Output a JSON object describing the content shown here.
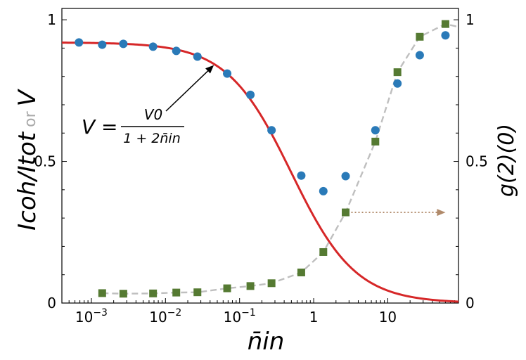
{
  "chart_data": {
    "type": "scatter",
    "xlabel": "n̄in",
    "ylabel_left": "Icoh/Itot or V",
    "ylabel_left_parts": [
      "Icoh/Itot",
      " or ",
      "V"
    ],
    "ylabel_right": "g(2)(0)",
    "x_scale": "log",
    "xlim": [
      0.0004,
      90
    ],
    "ylim": [
      0,
      1.04
    ],
    "x_tick_labels": [
      "10−3",
      "10−2",
      "10−1",
      "1",
      "10"
    ],
    "y_tick_labels_left": [
      "0",
      "0.5",
      "1"
    ],
    "y_tick_labels_right": [
      "0",
      "0.5",
      "1"
    ],
    "grid": false,
    "colors": {
      "visibility_points": "#2a7ab8",
      "g2_points": "#557a32",
      "model_curve": "#d62728",
      "g2_dashed": "#bfbfbf",
      "arrow": "#b08a6a",
      "ylabel_or": "#aaaaaa"
    },
    "annotation": {
      "equation": "V = V0 / (1 + 2n̄in)",
      "lhs": "V =",
      "numerator": "V0",
      "denominator": "1 + 2n̄in",
      "points_to": {
        "x": 0.045,
        "y": 0.84
      }
    },
    "series": [
      {
        "marker": "circle",
        "color": "#2a7ab8",
        "points": [
          {
            "x": 0.00068,
            "y": 0.92
          },
          {
            "x": 0.0014,
            "y": 0.912
          },
          {
            "x": 0.0027,
            "y": 0.915
          },
          {
            "x": 0.0068,
            "y": 0.905
          },
          {
            "x": 0.014,
            "y": 0.89
          },
          {
            "x": 0.027,
            "y": 0.87
          },
          {
            "x": 0.068,
            "y": 0.81
          },
          {
            "x": 0.14,
            "y": 0.735
          },
          {
            "x": 0.27,
            "y": 0.61
          },
          {
            "x": 0.68,
            "y": 0.45
          },
          {
            "x": 1.35,
            "y": 0.395
          },
          {
            "x": 2.7,
            "y": 0.448
          },
          {
            "x": 6.8,
            "y": 0.61
          },
          {
            "x": 13.5,
            "y": 0.775
          },
          {
            "x": 27,
            "y": 0.875
          },
          {
            "x": 60,
            "y": 0.945
          }
        ]
      },
      {
        "marker": "square",
        "axis": "right",
        "color": "#557a32",
        "points": [
          {
            "x": 0.0014,
            "y": 0.035
          },
          {
            "x": 0.0027,
            "y": 0.033
          },
          {
            "x": 0.0068,
            "y": 0.034
          },
          {
            "x": 0.014,
            "y": 0.037
          },
          {
            "x": 0.027,
            "y": 0.038
          },
          {
            "x": 0.068,
            "y": 0.052
          },
          {
            "x": 0.14,
            "y": 0.06
          },
          {
            "x": 0.27,
            "y": 0.07
          },
          {
            "x": 0.68,
            "y": 0.108
          },
          {
            "x": 1.35,
            "y": 0.18
          },
          {
            "x": 2.7,
            "y": 0.32
          },
          {
            "x": 6.8,
            "y": 0.57
          },
          {
            "x": 13.5,
            "y": 0.815
          },
          {
            "x": 27,
            "y": 0.94
          },
          {
            "x": 60,
            "y": 0.985
          }
        ]
      },
      {
        "type": "line",
        "style": "solid",
        "color": "#d62728",
        "model": "V0 / (1 + 2 x)",
        "V0": 0.92
      },
      {
        "type": "line",
        "style": "dashed",
        "axis": "right",
        "color": "#bfbfbf",
        "points": [
          {
            "x": 0.0014,
            "y": 0.035
          },
          {
            "x": 0.0027,
            "y": 0.033
          },
          {
            "x": 0.0068,
            "y": 0.034
          },
          {
            "x": 0.014,
            "y": 0.037
          },
          {
            "x": 0.027,
            "y": 0.038
          },
          {
            "x": 0.068,
            "y": 0.052
          },
          {
            "x": 0.14,
            "y": 0.06
          },
          {
            "x": 0.27,
            "y": 0.07
          },
          {
            "x": 0.68,
            "y": 0.108
          },
          {
            "x": 1.35,
            "y": 0.18
          },
          {
            "x": 2.7,
            "y": 0.32
          },
          {
            "x": 6.8,
            "y": 0.57
          },
          {
            "x": 13.5,
            "y": 0.815
          },
          {
            "x": 27,
            "y": 0.94
          },
          {
            "x": 60,
            "y": 0.985
          },
          {
            "x": 90,
            "y": 0.975
          }
        ]
      }
    ],
    "right_axis_arrow": {
      "y": 0.32,
      "from_x": 2.7,
      "to_x": 60
    }
  }
}
